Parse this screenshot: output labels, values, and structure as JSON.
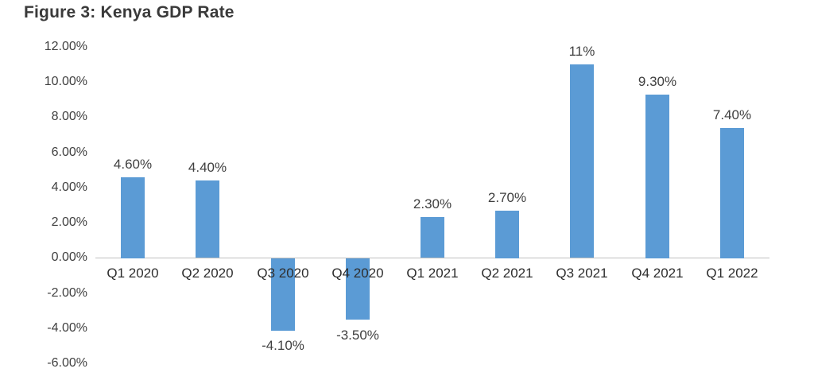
{
  "page": {
    "background_color": "#ffffff"
  },
  "chart_data": {
    "type": "bar",
    "title": "Figure 3: Kenya GDP Rate",
    "categories": [
      "Q1 2020",
      "Q2 2020",
      "Q3 2020",
      "Q4 2020",
      "Q1 2021",
      "Q2 2021",
      "Q3 2021",
      "Q4 2021",
      "Q1 2022"
    ],
    "values": [
      4.6,
      4.4,
      -4.1,
      -3.5,
      2.3,
      2.7,
      11,
      9.3,
      7.4
    ],
    "value_labels": [
      "4.60%",
      "4.40%",
      "-4.10%",
      "-3.50%",
      "2.30%",
      "2.70%",
      "11%",
      "9.30%",
      "7.40%"
    ],
    "y_ticks": [
      "12.00%",
      "10.00%",
      "8.00%",
      "6.00%",
      "4.00%",
      "2.00%",
      "0.00%",
      "-2.00%",
      "-4.00%",
      "-6.00%"
    ],
    "ylim": [
      -6,
      12
    ],
    "y_tick_step": 2,
    "xlabel": "",
    "ylabel": "",
    "grid": "off",
    "legend": "none",
    "bar_color": "#5B9BD5",
    "axis_line_color": "#BFBFBF",
    "text_color": "#404040",
    "title_color": "#3A3A3A"
  }
}
